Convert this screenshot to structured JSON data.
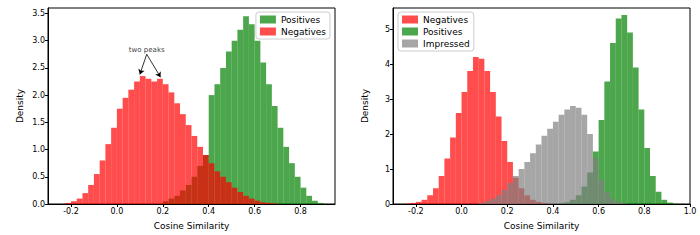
{
  "chart_data": [
    {
      "type": "histogram",
      "x_label": "Cosine Similarity",
      "y_label": "Density",
      "bins": [
        -0.25,
        -0.225,
        -0.2,
        -0.175,
        -0.15,
        -0.125,
        -0.1,
        -0.075,
        -0.05,
        -0.025,
        0,
        0.025,
        0.05,
        0.075,
        0.1,
        0.125,
        0.15,
        0.175,
        0.2,
        0.225,
        0.25,
        0.275,
        0.3,
        0.325,
        0.35,
        0.375,
        0.4,
        0.425,
        0.45,
        0.475,
        0.5,
        0.525,
        0.55,
        0.575,
        0.6,
        0.625,
        0.65,
        0.675,
        0.7,
        0.725,
        0.75,
        0.775,
        0.8,
        0.825,
        0.85,
        0.875,
        0.9
      ],
      "series": [
        {
          "name": "Positives",
          "color": "#008000",
          "values": [
            0,
            0,
            0,
            0,
            0,
            0,
            0,
            0,
            0,
            0,
            0,
            0,
            0,
            0,
            0,
            0,
            0,
            0,
            0.05,
            0.1,
            0.15,
            0.25,
            0.35,
            0.5,
            0.7,
            0.9,
            2.0,
            2.2,
            2.5,
            2.8,
            3.0,
            3.2,
            3.45,
            3.3,
            3.0,
            2.6,
            2.2,
            1.8,
            1.4,
            1.05,
            0.75,
            0.5,
            0.3,
            0.15,
            0.06,
            0.02
          ]
        },
        {
          "name": "Negatives",
          "color": "#ff0000",
          "values": [
            0,
            0.02,
            0.05,
            0.1,
            0.2,
            0.35,
            0.55,
            0.8,
            1.1,
            1.4,
            1.75,
            1.95,
            2.1,
            2.25,
            2.35,
            2.3,
            2.25,
            2.3,
            2.2,
            2.05,
            1.85,
            1.65,
            1.45,
            1.25,
            1.05,
            0.9,
            0.75,
            0.6,
            0.5,
            0.4,
            0.3,
            0.22,
            0.15,
            0.1,
            0.06,
            0.03,
            0.02,
            0.01,
            0,
            0,
            0,
            0,
            0,
            0,
            0,
            0
          ]
        }
      ],
      "xlim": [
        -0.3,
        0.95
      ],
      "xticks": [
        -0.2,
        {
          "value": 0,
          "label": "0.0"
        },
        0.2,
        0.4,
        0.6,
        0.8
      ],
      "ylim": [
        0,
        3.6
      ],
      "yticks": [
        {
          "value": 0,
          "label": "0.0"
        },
        0.5,
        {
          "value": 1,
          "label": "1.0"
        },
        1.5,
        {
          "value": 2,
          "label": "2.0"
        },
        2.5,
        {
          "value": 3,
          "label": "3.0"
        },
        3.5
      ],
      "annotations": [
        {
          "text": "two peaks",
          "x": 0.13,
          "y": 2.75,
          "arrows": [
            [
              0.1,
              2.38
            ],
            [
              0.19,
              2.33
            ]
          ]
        }
      ],
      "legend": "upper right",
      "grid": false
    },
    {
      "type": "histogram",
      "x_label": "Cosine Similarity",
      "y_label": "Density",
      "bins": [
        -0.25,
        -0.225,
        -0.2,
        -0.175,
        -0.15,
        -0.125,
        -0.1,
        -0.075,
        -0.05,
        -0.025,
        0,
        0.025,
        0.05,
        0.075,
        0.1,
        0.125,
        0.15,
        0.175,
        0.2,
        0.225,
        0.25,
        0.275,
        0.3,
        0.325,
        0.35,
        0.375,
        0.4,
        0.425,
        0.45,
        0.475,
        0.5,
        0.525,
        0.55,
        0.575,
        0.6,
        0.625,
        0.65,
        0.675,
        0.7,
        0.725,
        0.75,
        0.775,
        0.8,
        0.825,
        0.85,
        0.875,
        0.9,
        0.925,
        0.95
      ],
      "series": [
        {
          "name": "Negatives",
          "color": "#ff0000",
          "values": [
            0.01,
            0.03,
            0.06,
            0.12,
            0.25,
            0.45,
            0.8,
            1.3,
            1.9,
            2.6,
            3.2,
            3.8,
            4.2,
            4.15,
            3.8,
            3.2,
            2.5,
            1.8,
            1.2,
            0.75,
            0.45,
            0.25,
            0.12,
            0.06,
            0.03,
            0.01,
            0,
            0,
            0,
            0,
            0,
            0,
            0,
            0,
            0,
            0,
            0,
            0,
            0,
            0,
            0,
            0,
            0,
            0,
            0,
            0,
            0,
            0
          ]
        },
        {
          "name": "Positives",
          "color": "#008000",
          "values": [
            0,
            0,
            0,
            0,
            0,
            0,
            0,
            0,
            0,
            0,
            0,
            0,
            0,
            0,
            0,
            0,
            0,
            0,
            0,
            0,
            0,
            0,
            0,
            0,
            0,
            0,
            0,
            0.02,
            0.05,
            0.12,
            0.25,
            0.5,
            0.9,
            1.5,
            2.4,
            3.5,
            4.6,
            5.3,
            5.4,
            4.9,
            3.9,
            2.7,
            1.6,
            0.8,
            0.35,
            0.12,
            0.04,
            0.01
          ]
        },
        {
          "name": "Impressed",
          "color": "#808080",
          "values": [
            0,
            0,
            0,
            0,
            0,
            0,
            0,
            0,
            0,
            0,
            0,
            0,
            0,
            0.03,
            0.08,
            0.15,
            0.25,
            0.4,
            0.6,
            0.8,
            1.0,
            1.2,
            1.45,
            1.7,
            1.95,
            2.15,
            2.35,
            2.55,
            2.7,
            2.8,
            2.75,
            2.55,
            2.0,
            1.3,
            0.7,
            0.35,
            0.15,
            0.06,
            0.02,
            0,
            0,
            0,
            0,
            0,
            0,
            0,
            0,
            0
          ]
        }
      ],
      "xlim": [
        -0.3,
        1.0
      ],
      "xticks": [
        -0.2,
        {
          "value": 0,
          "label": "0.0"
        },
        0.2,
        0.4,
        0.6,
        0.8,
        {
          "value": 1,
          "label": "1.0"
        }
      ],
      "ylim": [
        0,
        5.6
      ],
      "yticks": [
        0,
        1,
        2,
        3,
        4,
        5
      ],
      "legend": "upper left",
      "grid": false
    }
  ]
}
